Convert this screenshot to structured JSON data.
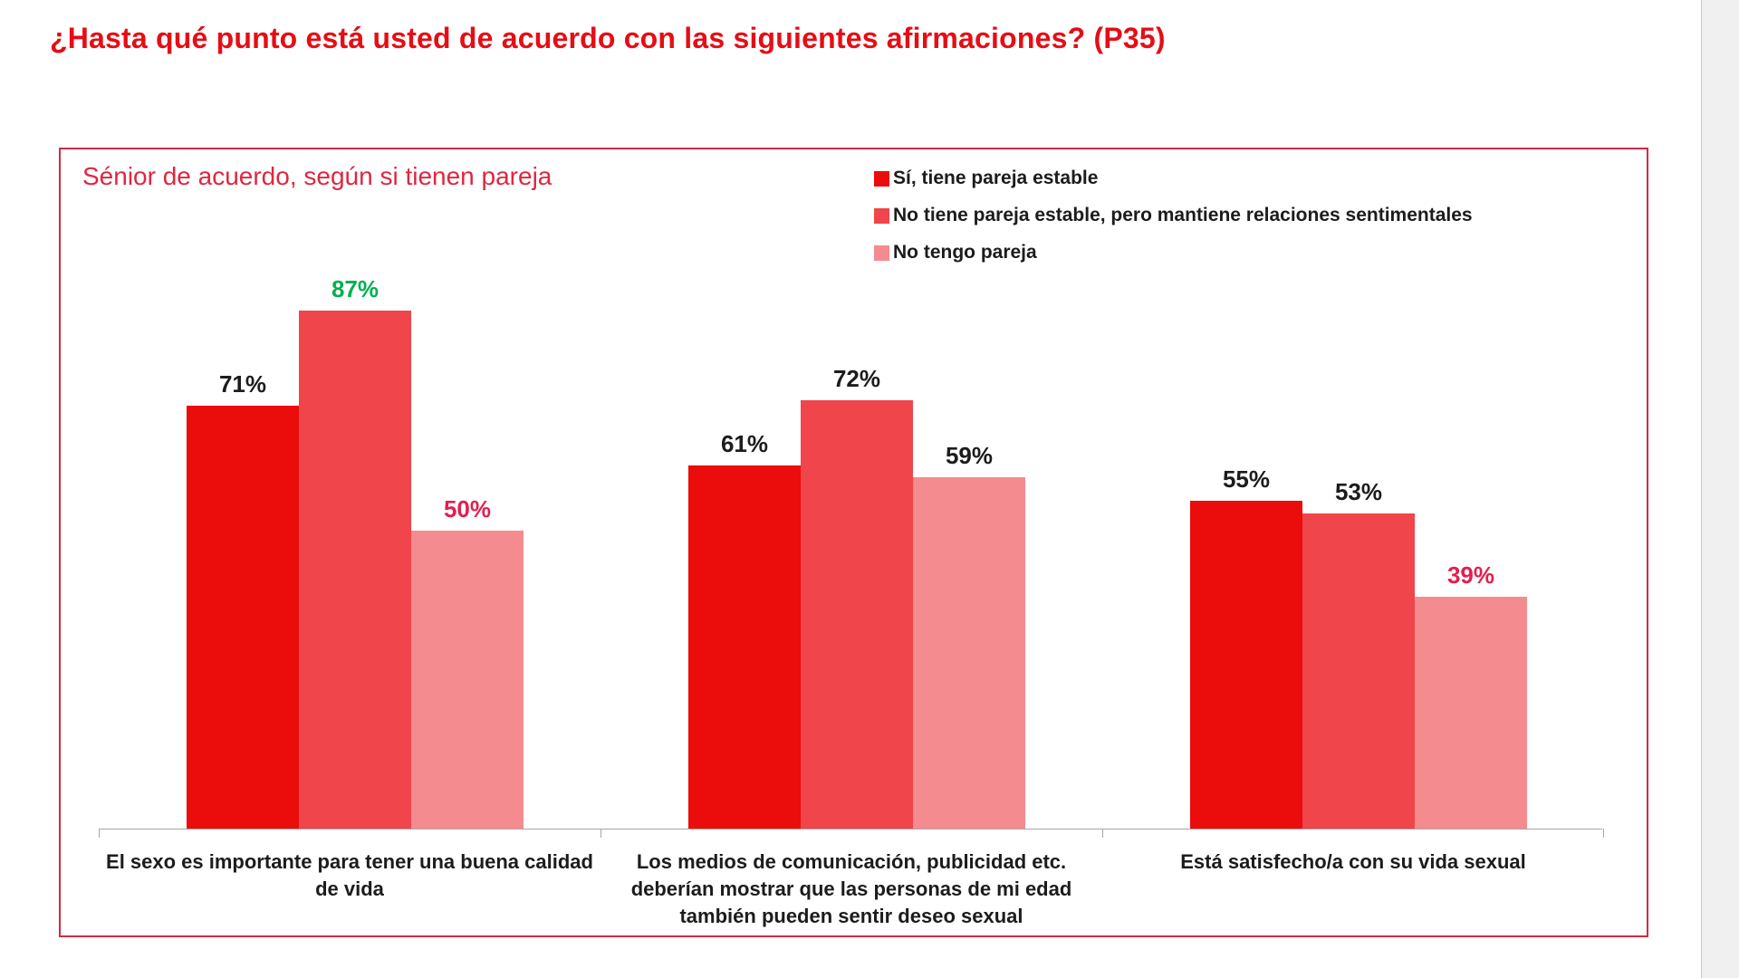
{
  "page": {
    "title": "¿Hasta qué punto está usted de acuerdo con las siguientes afirmaciones? (P35)"
  },
  "chart": {
    "subtitle": "Sénior de acuerdo, según si tienen pareja"
  },
  "chart_data": {
    "type": "bar",
    "title": "Sénior de acuerdo, según si tienen pareja",
    "unit": "%",
    "categories": [
      "El sexo es importante para tener una buena calidad de vida",
      "Los medios de comunicación, publicidad etc. deberían mostrar que las personas de mi edad también pueden sentir deseo sexual",
      "Está satisfecho/a con su vida sexual"
    ],
    "series": [
      {
        "name": "Sí, tiene pareja estable",
        "color": "#EB0C0C",
        "values": [
          71,
          61,
          55
        ],
        "label_colors": [
          "#1C1C1C",
          "#1C1C1C",
          "#1C1C1C"
        ]
      },
      {
        "name": "No tiene pareja estable, pero mantiene relaciones sentimentales",
        "color": "#F0454A",
        "values": [
          87,
          72,
          53
        ],
        "label_colors": [
          "#00B050",
          "#1C1C1C",
          "#1C1C1C"
        ]
      },
      {
        "name": "No tengo pareja",
        "color": "#F48C8F",
        "values": [
          50,
          59,
          39
        ],
        "label_colors": [
          "#E31E4F",
          "#1C1C1C",
          "#E31E4F"
        ]
      }
    ],
    "ylim": [
      0,
      100
    ],
    "grid": false,
    "legend_position": "top-right",
    "data_label_format": "{value}%"
  },
  "style": {
    "title_color": "#E60D15",
    "subtitle_color": "#DE273F",
    "box_border_color": "#CF2B44",
    "axis_color": "#A6A6A6",
    "text_color": "#1C1C1C",
    "green_label_color": "#00B050",
    "red_label_color": "#E31E4F"
  }
}
